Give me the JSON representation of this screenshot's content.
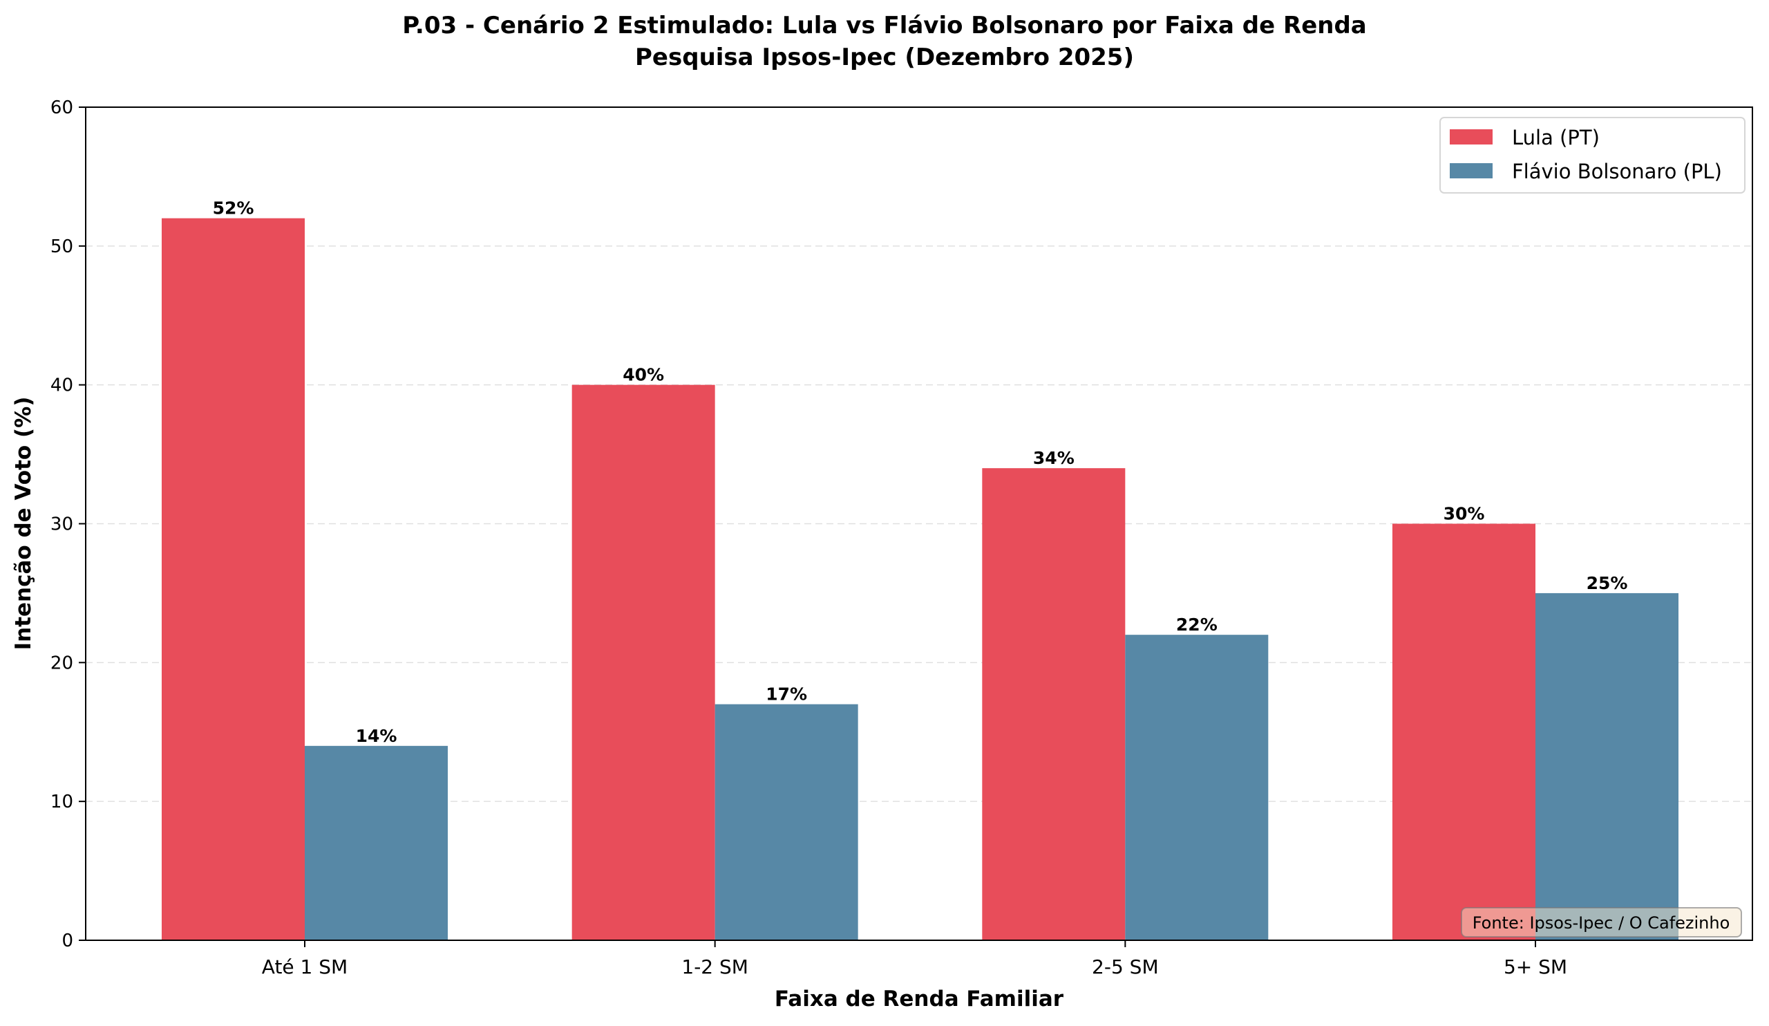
{
  "chart_data": {
    "type": "bar",
    "title": "P.03 - Cenário 2 Estimulado: Lula vs Flávio Bolsonaro por Faixa de Renda",
    "subtitle": "Pesquisa Ipsos-Ipec (Dezembro 2025)",
    "xlabel": "Faixa de Renda Familiar",
    "ylabel": "Intenção de Voto (%)",
    "categories": [
      "Até 1 SM",
      "1-2 SM",
      "2-5 SM",
      "5+ SM"
    ],
    "series": [
      {
        "name": "Lula (PT)",
        "color": "#e84d5a",
        "values": [
          52,
          40,
          34,
          30
        ],
        "labels": [
          "52%",
          "40%",
          "34%",
          "30%"
        ]
      },
      {
        "name": "Flávio Bolsonaro (PL)",
        "color": "#5788a6",
        "values": [
          14,
          17,
          22,
          25
        ],
        "labels": [
          "14%",
          "17%",
          "22%",
          "25%"
        ]
      }
    ],
    "ylim": [
      0,
      60
    ],
    "yticks": [
      0,
      10,
      20,
      30,
      40,
      50,
      60
    ],
    "ytick_labels": [
      "0",
      "10",
      "20",
      "30",
      "40",
      "50",
      "60"
    ],
    "grid": true,
    "legend_position": "top-right",
    "annotation": "Fonte: Ipsos-Ipec / O Cafezinho"
  }
}
